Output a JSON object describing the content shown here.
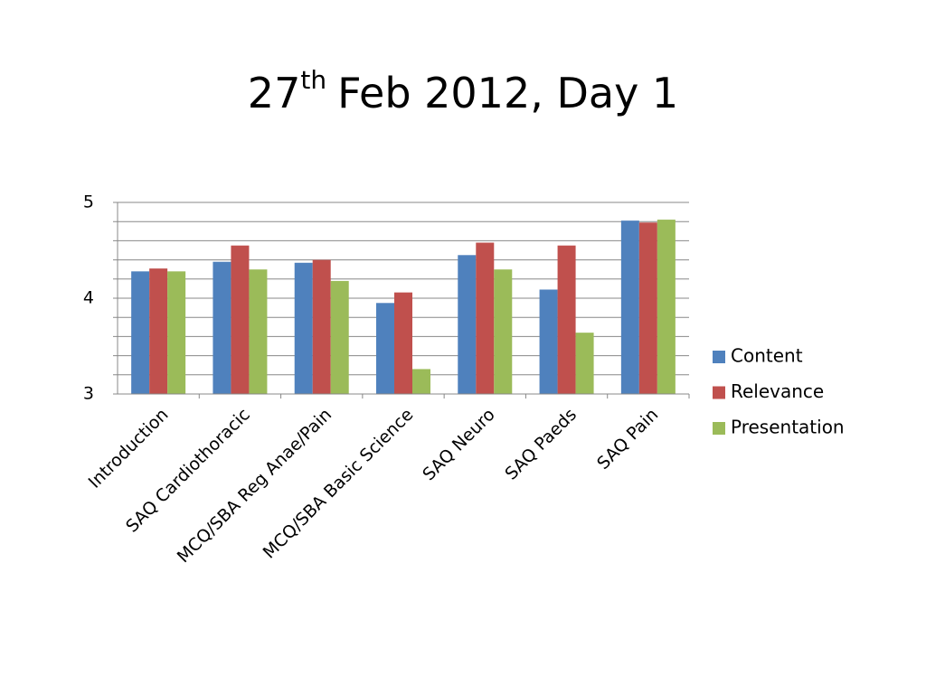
{
  "chart_data": {
    "type": "bar",
    "title": {
      "number": "27",
      "superscript": "th",
      "text": "Feb 2012, Day 1"
    },
    "categories": [
      "Introduction",
      "SAQ Cardiothoracic",
      "MCQ/SBA Reg Anae/Pain",
      "MCQ/SBA Basic Science",
      "SAQ Neuro",
      "SAQ Paeds",
      "SAQ Pain"
    ],
    "series": [
      {
        "name": "Content",
        "color": "#4f81bd",
        "values": [
          4.28,
          4.38,
          4.37,
          3.95,
          4.45,
          4.09,
          4.81
        ]
      },
      {
        "name": "Relevance",
        "color": "#c0504d",
        "values": [
          4.31,
          4.55,
          4.4,
          4.06,
          4.58,
          4.55,
          4.79
        ]
      },
      {
        "name": "Presentation",
        "color": "#9bbb59",
        "values": [
          4.28,
          4.3,
          4.18,
          3.26,
          4.3,
          3.64,
          4.82
        ]
      }
    ],
    "ylim": [
      3,
      5
    ],
    "yticks": [
      3,
      4,
      5
    ],
    "minor_yticks": [
      3.2,
      3.4,
      3.6,
      3.8,
      4.2,
      4.4,
      4.6,
      4.8
    ],
    "grid": true,
    "legend": "right"
  }
}
